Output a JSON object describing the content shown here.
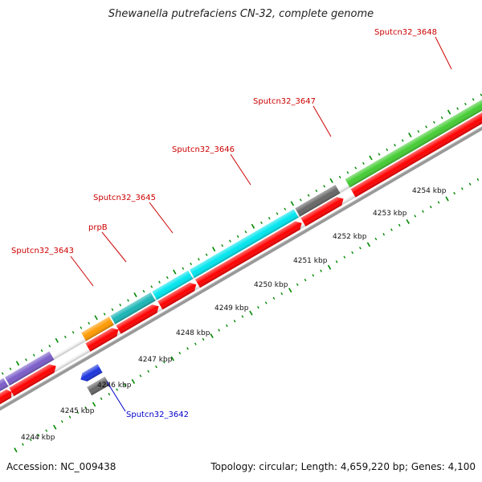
{
  "title": "Shewanella putrefaciens CN-32, complete genome",
  "footer": {
    "accession": "Accession: NC_009438",
    "summary": "Topology: circular; Length: 4,659,220 bp; Genes: 4,100"
  },
  "colors": {
    "cds_red": "#ff0000",
    "gene_label_red": "#cc0000",
    "gene_label_blue": "#0000cc",
    "backbone": "#999999",
    "tick": "#008800"
  },
  "kbp_labels": [
    "4244 kbp",
    "4245 kbp",
    "4246 kbp",
    "4247 kbp",
    "4248 kbp",
    "4249 kbp",
    "4250 kbp",
    "4251 kbp",
    "4252 kbp",
    "4253 kbp",
    "4254 kbp"
  ],
  "gene_labels": [
    {
      "text": "Sputcn32_3643",
      "strand": "forward"
    },
    {
      "text": "prpB",
      "strand": "forward"
    },
    {
      "text": "Sputcn32_3645",
      "strand": "forward"
    },
    {
      "text": "Sputcn32_3646",
      "strand": "forward"
    },
    {
      "text": "Sputcn32_3647",
      "strand": "forward"
    },
    {
      "text": "Sputcn32_3648",
      "strand": "forward"
    },
    {
      "text": "Sputcn32_3642",
      "strand": "reverse"
    }
  ],
  "gene_features": [
    {
      "category": "purple",
      "color": "#7a5cc9"
    },
    {
      "category": "orange",
      "color": "#ff9900"
    },
    {
      "category": "teal",
      "color": "#19b5b5"
    },
    {
      "category": "cyan",
      "color": "#00e5ee"
    },
    {
      "category": "gray",
      "color": "#666666"
    },
    {
      "category": "green",
      "color": "#44cc33"
    },
    {
      "category": "blue",
      "color": "#1a33dd"
    }
  ]
}
